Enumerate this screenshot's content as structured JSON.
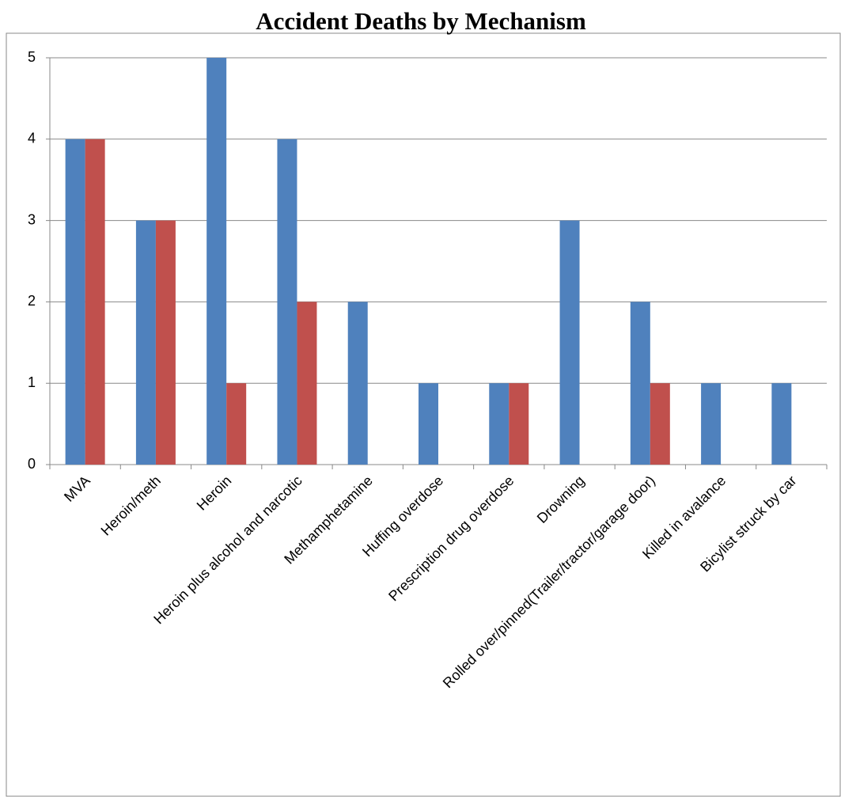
{
  "chart_data": {
    "type": "bar",
    "title": "Accident Deaths by Mechanism",
    "categories": [
      "MVA",
      "Heroin/meth",
      "Heroin",
      "Heroin plus alcohol and narcotic",
      "Methamphetamine",
      "Huffing overdose",
      "Prescription drug overdose",
      "Drowning",
      "Rolled over/pinned(Trailer/tractor/garage door)",
      "Killed in avalance",
      "Bicylist struck by car"
    ],
    "series": [
      {
        "color": "#4f81bd",
        "values": [
          4,
          3,
          5,
          4,
          2,
          1,
          1,
          3,
          2,
          1,
          1
        ]
      },
      {
        "color": "#c0504d",
        "values": [
          4,
          3,
          1,
          2,
          0,
          0,
          1,
          0,
          1,
          0,
          0
        ]
      }
    ],
    "ylim": [
      0,
      5
    ],
    "yticks": [
      0,
      1,
      2,
      3,
      4,
      5
    ],
    "grid": true
  }
}
